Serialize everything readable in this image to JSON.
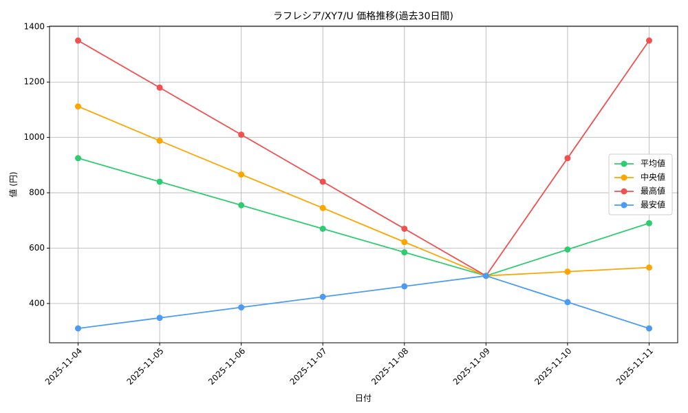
{
  "chart_data": {
    "type": "line",
    "title": "ラフレシア/XY7/U 価格推移(過去30日間)",
    "x_label": "日付",
    "y_label": "値 (円)",
    "categories": [
      "2025-11-04",
      "2025-11-05",
      "2025-11-06",
      "2025-11-07",
      "2025-11-08",
      "2025-11-09",
      "2025-11-10",
      "2025-11-11"
    ],
    "series": [
      {
        "name": "平均値",
        "color": "#2ecc71",
        "values": [
          925,
          840,
          755,
          670,
          585,
          500,
          595,
          690
        ]
      },
      {
        "name": "中央値",
        "color": "#ffa500",
        "values": [
          1112,
          988,
          866,
          745,
          622,
          500,
          515,
          530
        ]
      },
      {
        "name": "最高値",
        "color": "#f05050",
        "values": [
          1350,
          1180,
          1010,
          840,
          670,
          500,
          925,
          1350
        ]
      },
      {
        "name": "最安値",
        "color": "#4a9bf5",
        "values": [
          310,
          348,
          386,
          424,
          462,
          500,
          405,
          310
        ]
      }
    ],
    "ylim": [
      258,
      1402
    ],
    "yticks": [
      400,
      600,
      800,
      1000,
      1200,
      1400
    ],
    "grid": true,
    "legend": "center right"
  }
}
